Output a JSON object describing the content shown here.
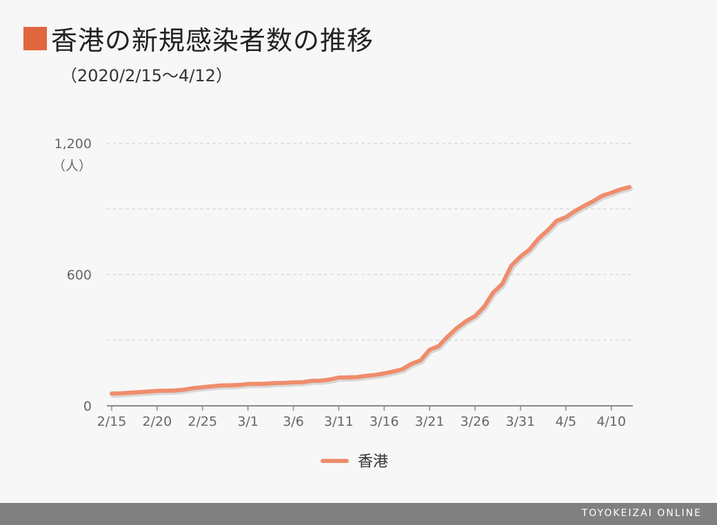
{
  "header": {
    "title": "香港の新規感染者数の推移",
    "subtitle": "（2020/2/15～4/12）"
  },
  "footer": {
    "brand": "TOYOKEIZAI ONLINE"
  },
  "colors": {
    "accent": "#e0663e",
    "line": "#ef8d6d",
    "grid": "#d6d6d6",
    "axis": "#888888"
  },
  "chart_data": {
    "type": "line",
    "title": "香港の新規感染者数の推移",
    "subtitle": "（2020/2/15～4/12）",
    "y_unit": "（人）",
    "ylim": [
      0,
      1200
    ],
    "y_ticks": [
      0,
      600,
      1200
    ],
    "y_tick_labels": [
      "0",
      "600",
      "1,200"
    ],
    "y_gridlines": [
      300,
      600,
      900,
      1200
    ],
    "grid": true,
    "legend_position": "bottom-center",
    "x_tick_labels": [
      "2/15",
      "2/20",
      "2/25",
      "3/1",
      "3/6",
      "3/11",
      "3/16",
      "3/21",
      "3/26",
      "3/31",
      "4/5",
      "4/10"
    ],
    "x_tick_dates": [
      "2/15",
      "2/20",
      "2/25",
      "3/1",
      "3/6",
      "3/11",
      "3/16",
      "3/21",
      "3/26",
      "3/31",
      "4/5",
      "4/10"
    ],
    "x": [
      "2/15",
      "2/16",
      "2/17",
      "2/18",
      "2/19",
      "2/20",
      "2/21",
      "2/22",
      "2/23",
      "2/24",
      "2/25",
      "2/26",
      "2/27",
      "2/28",
      "2/29",
      "3/1",
      "3/2",
      "3/3",
      "3/4",
      "3/5",
      "3/6",
      "3/7",
      "3/8",
      "3/9",
      "3/10",
      "3/11",
      "3/12",
      "3/13",
      "3/14",
      "3/15",
      "3/16",
      "3/17",
      "3/18",
      "3/19",
      "3/20",
      "3/21",
      "3/22",
      "3/23",
      "3/24",
      "3/25",
      "3/26",
      "3/27",
      "3/28",
      "3/29",
      "3/30",
      "3/31",
      "4/1",
      "4/2",
      "4/3",
      "4/4",
      "4/5",
      "4/6",
      "4/7",
      "4/8",
      "4/9",
      "4/10",
      "4/11",
      "4/12"
    ],
    "series": [
      {
        "name": "香港",
        "values": [
          56,
          57,
          60,
          62,
          65,
          68,
          69,
          70,
          74,
          81,
          85,
          89,
          93,
          94,
          95,
          100,
          100,
          101,
          104,
          105,
          107,
          108,
          114,
          115,
          120,
          129,
          130,
          131,
          137,
          141,
          148,
          157,
          167,
          192,
          208,
          256,
          273,
          317,
          356,
          386,
          410,
          453,
          518,
          557,
          641,
          682,
          715,
          765,
          802,
          846,
          862,
          890,
          914,
          935,
          960,
          974,
          989,
          1000
        ]
      }
    ]
  }
}
